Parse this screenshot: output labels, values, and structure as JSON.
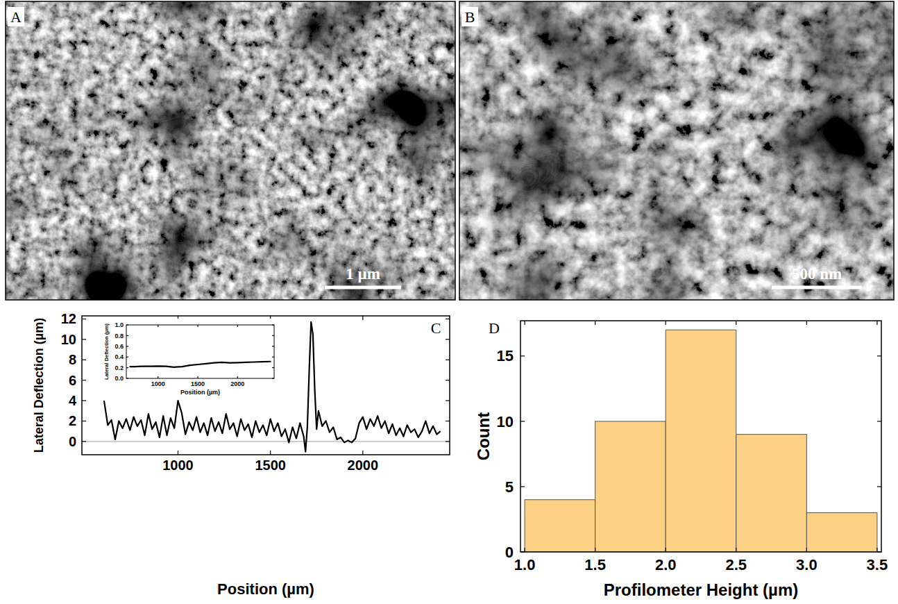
{
  "images": [
    {
      "panel": "A",
      "scale_bar": "1 µm"
    },
    {
      "panel": "B",
      "scale_bar": "500 nm"
    }
  ],
  "chart_data": [
    {
      "panel": "C",
      "type": "line",
      "x_label": "Position (µm)",
      "y_label": "Lateral Deflection (µm)",
      "x": [
        600,
        620,
        640,
        660,
        680,
        700,
        720,
        740,
        760,
        780,
        800,
        820,
        840,
        860,
        880,
        900,
        920,
        940,
        960,
        980,
        1000,
        1020,
        1040,
        1060,
        1080,
        1100,
        1120,
        1140,
        1160,
        1180,
        1200,
        1220,
        1240,
        1260,
        1280,
        1300,
        1320,
        1340,
        1360,
        1380,
        1400,
        1420,
        1440,
        1460,
        1480,
        1500,
        1520,
        1540,
        1560,
        1580,
        1600,
        1620,
        1640,
        1660,
        1680,
        1690,
        1700,
        1710,
        1720,
        1730,
        1740,
        1750,
        1760,
        1780,
        1800,
        1820,
        1840,
        1860,
        1880,
        1900,
        1920,
        1940,
        1960,
        1980,
        2000,
        2020,
        2040,
        2060,
        2080,
        2100,
        2120,
        2140,
        2160,
        2180,
        2200,
        2220,
        2240,
        2260,
        2280,
        2300,
        2320,
        2340,
        2360,
        2380,
        2400,
        2420
      ],
      "values": [
        4.0,
        1.6,
        2.1,
        0.2,
        2.0,
        1.3,
        2.2,
        1.1,
        2.4,
        1.5,
        2.1,
        0.6,
        2.7,
        1.2,
        1.9,
        0.4,
        2.5,
        0.6,
        2.3,
        1.3,
        4.0,
        2.8,
        0.7,
        1.9,
        1.1,
        2.4,
        0.9,
        1.8,
        0.6,
        2.3,
        1.0,
        1.9,
        0.8,
        2.7,
        1.2,
        1.8,
        0.5,
        2.2,
        1.1,
        1.7,
        0.4,
        2.0,
        0.9,
        1.6,
        0.6,
        2.2,
        1.0,
        1.8,
        0.5,
        1.2,
        -0.1,
        1.4,
        0.3,
        1.8,
        0.5,
        -1.0,
        1.5,
        7.0,
        11.7,
        10.5,
        5.0,
        1.2,
        3.0,
        1.5,
        2.0,
        0.9,
        1.4,
        0.2,
        0.4,
        -0.1,
        0.1,
        -0.1,
        0.3,
        1.8,
        2.4,
        1.2,
        2.2,
        1.5,
        2.5,
        1.3,
        2.0,
        0.8,
        1.7,
        0.6,
        1.3,
        0.5,
        1.6,
        0.9,
        1.2,
        0.4,
        1.0,
        2.0,
        0.8,
        1.5,
        0.7,
        1.0
      ],
      "color": "#000000",
      "xlim": [
        480,
        2470
      ],
      "ylim": [
        -1.3,
        12.3
      ],
      "xticks": [
        1000,
        1500,
        2000
      ],
      "yticks": [
        0,
        2,
        4,
        6,
        8,
        10,
        12
      ],
      "reference_line": 0
    },
    {
      "type": "line",
      "x_label": "Position (µm)",
      "y_label": "Lateral Deflection (µm)",
      "x": [
        640,
        700,
        800,
        900,
        1000,
        1100,
        1200,
        1300,
        1400,
        1500,
        1600,
        1700,
        1800,
        1900,
        2000,
        2100,
        2200,
        2300,
        2420
      ],
      "values": [
        0.22,
        0.22,
        0.225,
        0.225,
        0.23,
        0.225,
        0.21,
        0.22,
        0.245,
        0.26,
        0.275,
        0.29,
        0.3,
        0.29,
        0.295,
        0.3,
        0.305,
        0.31,
        0.315
      ],
      "color": "#000000",
      "xlim": [
        600,
        2460
      ],
      "ylim": [
        0,
        1
      ],
      "xticks": [
        1000,
        1500,
        2000
      ],
      "yticks": [
        {
          "value": 0,
          "label": "0.0"
        },
        {
          "value": 0.2,
          "label": "0.2"
        },
        {
          "value": 0.4,
          "label": "0.4"
        },
        {
          "value": 0.6,
          "label": "0.6"
        },
        {
          "value": 0.8,
          "label": "0.8"
        },
        {
          "value": 1,
          "label": "1.0"
        }
      ]
    },
    {
      "panel": "D",
      "type": "histogram",
      "x_label": "Profilometer Height (µm)",
      "y_label": "Count",
      "bins": [
        1,
        1.5,
        2,
        2.5,
        3,
        3.5
      ],
      "values": [
        4,
        10,
        17,
        9,
        3
      ],
      "color": "#fcd184",
      "xlim": [
        0.97,
        3.53
      ],
      "ylim": [
        0,
        17.7
      ],
      "xticks": [
        {
          "value": 1,
          "label": "1.0"
        },
        1.5,
        {
          "value": 2,
          "label": "2.0"
        },
        2.5,
        {
          "value": 3,
          "label": "3.0"
        },
        3.5
      ],
      "yticks": [
        0,
        5,
        10,
        15
      ]
    }
  ]
}
